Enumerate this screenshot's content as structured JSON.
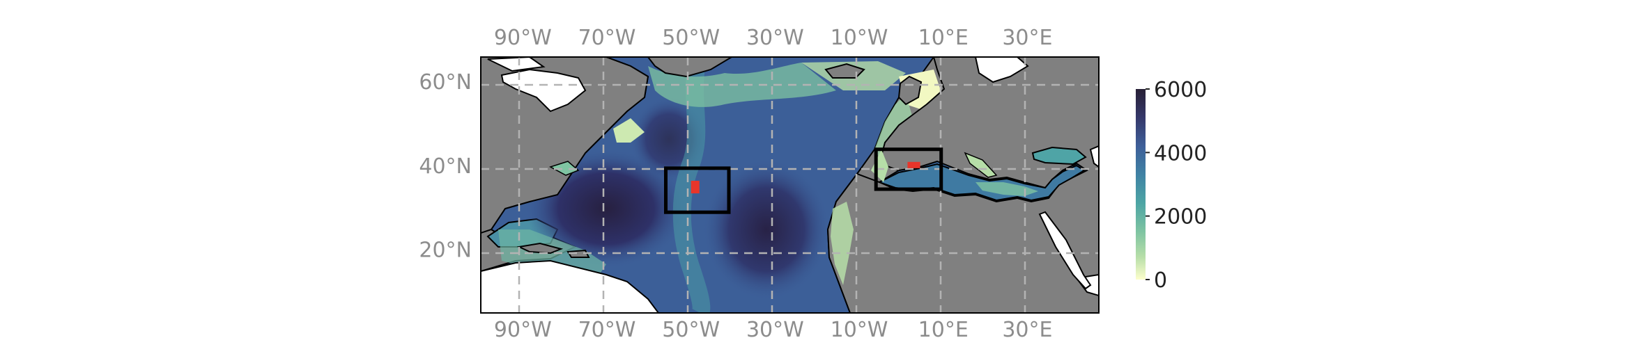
{
  "map": {
    "lon_ticks": [
      "90°W",
      "70°W",
      "50°W",
      "30°W",
      "10°W",
      "10°E",
      "30°E"
    ],
    "lat_ticks": [
      "60°N",
      "40°N",
      "20°N"
    ],
    "lon_values": [
      -90,
      -70,
      -50,
      -30,
      -10,
      10,
      30
    ],
    "lat_values": [
      60,
      40,
      20
    ],
    "extent": {
      "lon_min": -100,
      "lon_max": 47,
      "lat_min": 5,
      "lat_max": 66
    },
    "land_color": "#808080",
    "coast_color": "#000000",
    "gridline_color": "#b3b3b3",
    "gridline_style": "dashed",
    "boxes": [
      {
        "name": "box-west-atlantic",
        "lon": [
          -56,
          -41
        ],
        "lat": [
          29,
          39.5
        ],
        "color": "#000000"
      },
      {
        "name": "box-western-mediterranean",
        "lon": [
          -6,
          9.5
        ],
        "lat": [
          34.5,
          44
        ],
        "color": "#000000"
      }
    ],
    "markers": [
      {
        "name": "marker-west-atlantic",
        "lon": [
          -50,
          -48
        ],
        "lat": [
          33.5,
          36.5
        ],
        "color": "#e8352a"
      },
      {
        "name": "marker-mediterranean",
        "lon": [
          1.5,
          4.5
        ],
        "lat": [
          39.5,
          41
        ],
        "color": "#e8352a"
      }
    ]
  },
  "colorbar": {
    "ticks": [
      "6000",
      "4000",
      "2000",
      "0"
    ],
    "tick_values": [
      6000,
      4000,
      2000,
      0
    ],
    "min": 0,
    "max": 6000,
    "colormap": "deep",
    "colors_top_to_bottom": [
      "#282036",
      "#35386a",
      "#3e5f99",
      "#3f82a4",
      "#4da5a4",
      "#7fc4a2",
      "#b6dea8",
      "#fdfecc"
    ]
  }
}
